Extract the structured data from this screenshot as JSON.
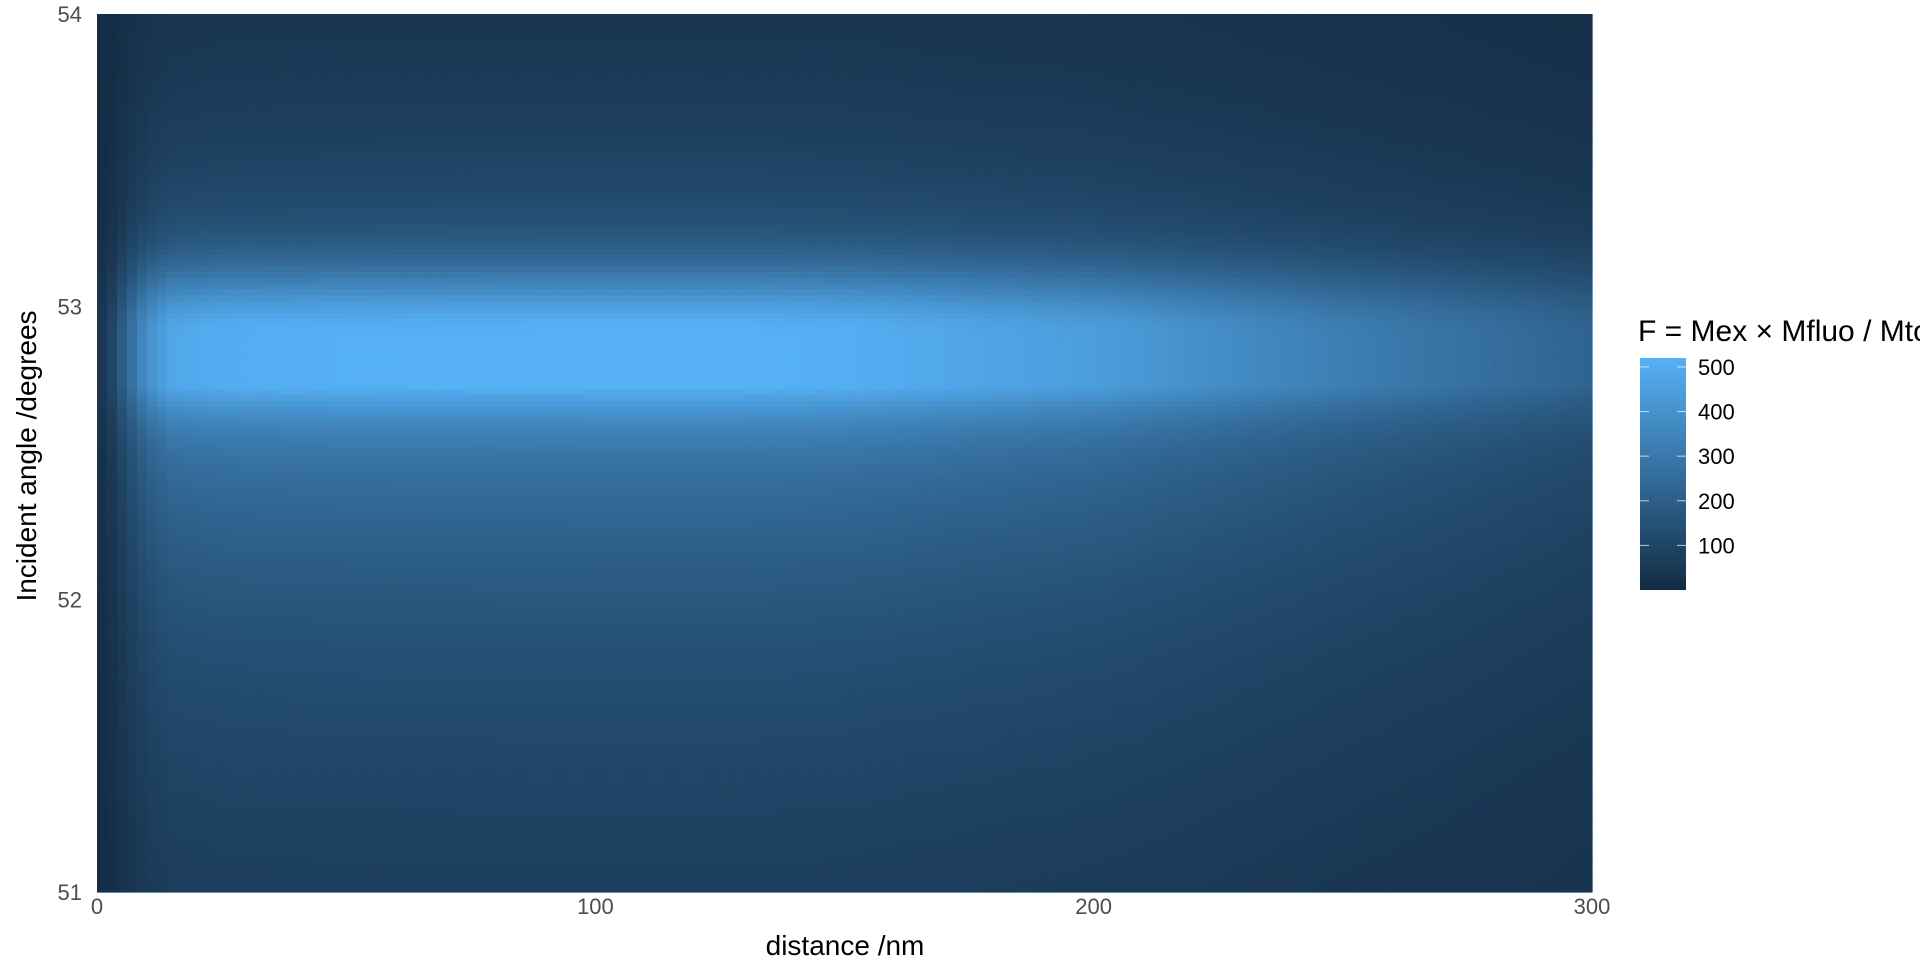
{
  "chart_data": {
    "type": "heatmap",
    "title": "",
    "xlabel": "distance /nm",
    "ylabel": "Incident angle /degrees",
    "xlim": [
      0,
      300
    ],
    "ylim": [
      51,
      54
    ],
    "x_ticks": [
      0,
      100,
      200,
      300
    ],
    "y_ticks": [
      51,
      52,
      53,
      54
    ],
    "x_tick_labels": [
      "0",
      "100",
      "200",
      "300"
    ],
    "y_tick_labels": [
      "51",
      "52",
      "53",
      "54"
    ],
    "peak_angle": 52.9,
    "peak_value": 520,
    "profile_x": [
      0,
      3,
      6,
      10,
      15,
      25,
      50,
      100,
      130,
      150,
      200,
      250,
      300
    ],
    "profile_factor": [
      0.05,
      0.2,
      0.45,
      0.75,
      0.92,
      0.97,
      0.99,
      1.0,
      1.0,
      0.98,
      0.85,
      0.62,
      0.42
    ],
    "baseline_value": 110,
    "grid": false,
    "legend": {
      "title": "F = Mex × Mfluo / Mtot",
      "placement": "right",
      "breaks": [
        500,
        400,
        300,
        200,
        100
      ],
      "break_labels": [
        "500",
        "400",
        "300",
        "200",
        "100"
      ],
      "range": [
        0,
        520
      ]
    },
    "colors": {
      "low": "#132B43",
      "high": "#56B1F7"
    }
  }
}
